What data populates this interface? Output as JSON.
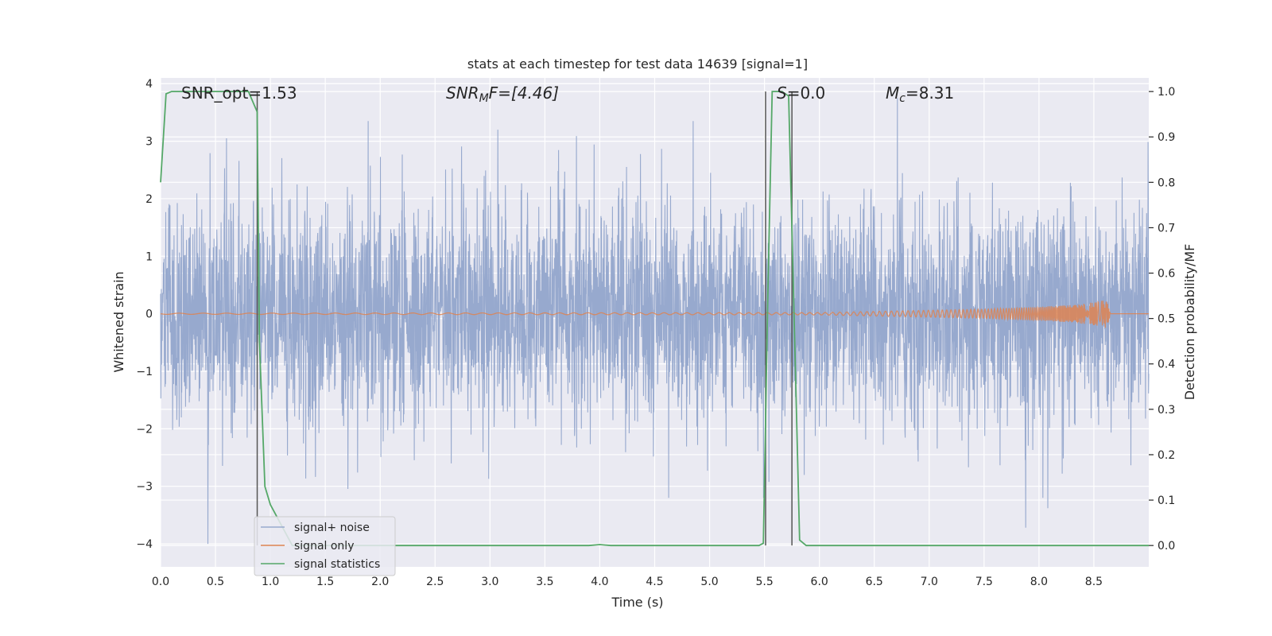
{
  "chart_data": {
    "type": "line",
    "title": "stats at each timestep for test data 14639 [signal=1]",
    "xlabel": "Time (s)",
    "ylabel_left": "Whitened strain",
    "ylabel_right": "Detection probability/MF",
    "xlim": [
      0.0,
      9.0
    ],
    "ylim_left": [
      -4.4,
      4.1
    ],
    "ylim_right": [
      -0.047,
      1.03
    ],
    "x_ticks": [
      "0.0",
      "0.5",
      "1.0",
      "1.5",
      "2.0",
      "2.5",
      "3.0",
      "3.5",
      "4.0",
      "4.5",
      "5.0",
      "5.5",
      "6.0",
      "6.5",
      "7.0",
      "7.5",
      "8.0",
      "8.5"
    ],
    "x_tick_values": [
      0.0,
      0.5,
      1.0,
      1.5,
      2.0,
      2.5,
      3.0,
      3.5,
      4.0,
      4.5,
      5.0,
      5.5,
      6.0,
      6.5,
      7.0,
      7.5,
      8.0,
      8.5
    ],
    "y_ticks_left": [
      "−4",
      "−3",
      "−2",
      "−1",
      "0",
      "1",
      "2",
      "3",
      "4"
    ],
    "y_tick_values_left": [
      -4,
      -3,
      -2,
      -1,
      0,
      1,
      2,
      3,
      4
    ],
    "y_ticks_right": [
      "0.0",
      "0.1",
      "0.2",
      "0.3",
      "0.4",
      "0.5",
      "0.6",
      "0.7",
      "0.8",
      "0.9",
      "1.0"
    ],
    "y_tick_values_right": [
      0.0,
      0.1,
      0.2,
      0.3,
      0.4,
      0.5,
      0.6,
      0.7,
      0.8,
      0.9,
      1.0
    ],
    "grid": true,
    "legend_position": "lower-left",
    "annotations": {
      "snr_opt": "SNR_opt=1.53",
      "snr_mf_main": "SNR",
      "snr_mf_sub": "M",
      "snr_mf_rest": "F=[4.46]",
      "s_main": "S",
      "s_rest": "=0.0",
      "mc_main": "M",
      "mc_sub": "c",
      "mc_rest": "=8.31"
    },
    "series": [
      {
        "name": "signal+ noise",
        "color": "#97a9ce",
        "axis": "left",
        "kind": "gaussian-noise",
        "x_range": [
          0.0,
          9.0
        ],
        "std": 0.95,
        "extremes": [
          [
            0.43,
            -4.0
          ],
          [
            0.6,
            3.05
          ],
          [
            1.89,
            3.35
          ],
          [
            4.85,
            3.35
          ],
          [
            6.71,
            3.75
          ],
          [
            7.88,
            -3.72
          ],
          [
            8.08,
            -3.38
          ]
        ]
      },
      {
        "name": "signal only",
        "color": "#dd8452",
        "axis": "left",
        "kind": "chirp",
        "x": [
          0.0,
          6.0,
          6.5,
          7.0,
          7.5,
          8.0,
          8.3,
          8.5,
          8.62,
          8.65
        ],
        "amplitude": [
          0.01,
          0.02,
          0.04,
          0.06,
          0.08,
          0.12,
          0.15,
          0.2,
          0.25,
          0.0
        ]
      },
      {
        "name": "signal statistics",
        "color": "#55a868",
        "axis": "right",
        "x": [
          0.0,
          0.05,
          0.1,
          0.3,
          0.5,
          0.8,
          0.88,
          0.9,
          0.95,
          1.0,
          1.2,
          2.0,
          3.0,
          3.9,
          4.0,
          4.1,
          5.0,
          5.45,
          5.49,
          5.53,
          5.57,
          5.66,
          5.72,
          5.82,
          5.88,
          6.5,
          7.5,
          8.5,
          9.0
        ],
        "y": [
          0.8,
          0.995,
          1.0,
          1.0,
          1.0,
          1.0,
          0.955,
          0.45,
          0.13,
          0.09,
          0.0,
          0.0,
          0.0,
          0.0,
          0.002,
          0.0,
          0.0,
          0.0,
          0.005,
          0.55,
          1.0,
          1.0,
          0.99,
          0.012,
          0.0,
          0.0,
          0.0,
          0.0,
          0.0
        ]
      }
    ],
    "vertical_lines": [
      0.88,
      5.51,
      5.75
    ],
    "vertical_line_color": "#555555"
  }
}
